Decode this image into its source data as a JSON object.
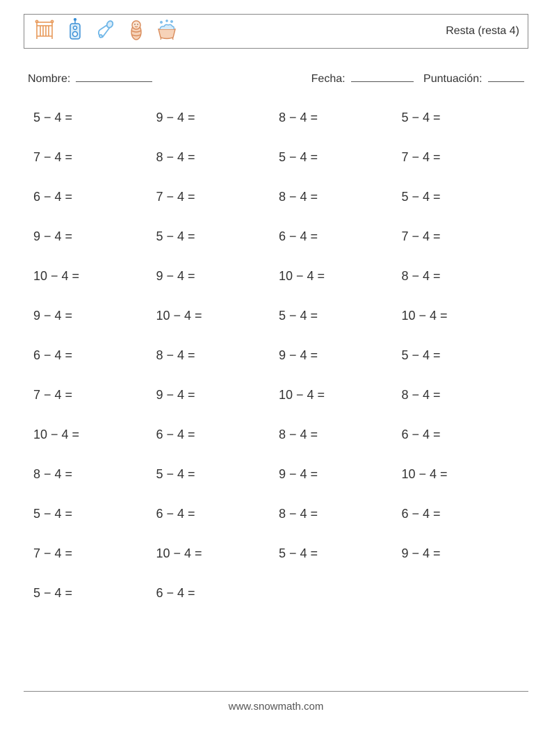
{
  "header": {
    "title": "Resta (resta 4)",
    "icons": [
      "crib-icon",
      "radio-icon",
      "safety-pin-icon",
      "swaddled-baby-icon",
      "bath-tub-icon"
    ]
  },
  "info": {
    "name_label": "Nombre:",
    "date_label": "Fecha:",
    "score_label": "Puntuación:"
  },
  "worksheet": {
    "operation": "−",
    "subtrahend": 4,
    "columns": 4,
    "problems": [
      [
        5,
        9,
        8,
        5
      ],
      [
        7,
        8,
        5,
        7
      ],
      [
        6,
        7,
        8,
        5
      ],
      [
        9,
        5,
        6,
        7
      ],
      [
        10,
        9,
        10,
        8
      ],
      [
        9,
        10,
        5,
        10
      ],
      [
        6,
        8,
        9,
        5
      ],
      [
        7,
        9,
        10,
        8
      ],
      [
        10,
        6,
        8,
        6
      ],
      [
        8,
        5,
        9,
        10
      ],
      [
        5,
        6,
        8,
        6
      ],
      [
        7,
        10,
        5,
        9
      ],
      [
        5,
        6,
        null,
        null
      ]
    ]
  },
  "footer": {
    "site": "www.snowmath.com"
  },
  "colors": {
    "text": "#333333",
    "border": "#888888",
    "orange": "#e8995a",
    "blue": "#6fb6e8",
    "pink": "#f2b9a8",
    "water": "#bfe3f2"
  }
}
